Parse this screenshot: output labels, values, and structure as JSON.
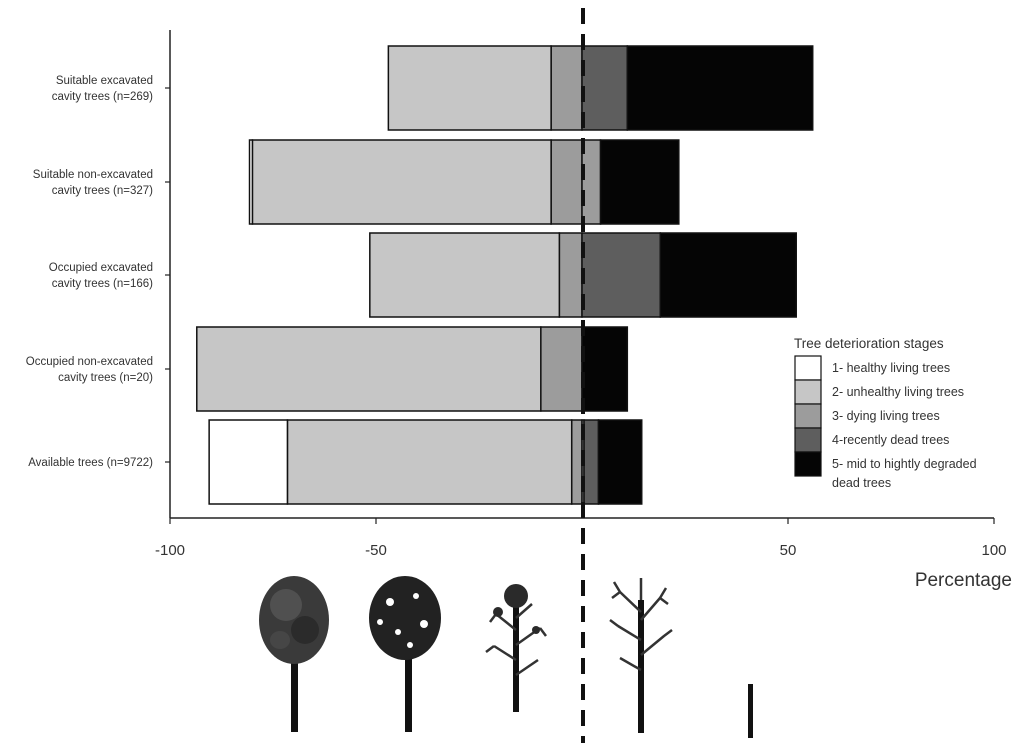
{
  "chart_data": {
    "type": "bar",
    "orientation": "horizontal",
    "stacked": "diverging",
    "xlabel": "Percentage",
    "xlim": [
      -100,
      100
    ],
    "xticks": [
      -100,
      -50,
      50,
      100
    ],
    "zero_line": "dashed",
    "categories": [
      [
        "Suitable excavated",
        "cavity trees (n=269)"
      ],
      [
        "Suitable non-excavated",
        "cavity trees (n=327)"
      ],
      [
        "Occupied excavated",
        "cavity trees (n=166)"
      ],
      [
        "Occupied non-excavated",
        "cavity trees (n=20)"
      ],
      [
        "Available trees (n=9722)"
      ]
    ],
    "series": [
      {
        "name": "1- healthy living trees",
        "side": "left",
        "color": "#ffffff",
        "values": [
          0,
          0.7,
          0,
          0,
          19
        ]
      },
      {
        "name": "2- unhealthy living trees",
        "side": "left",
        "color": "#c6c6c6",
        "values": [
          39.5,
          72.5,
          46,
          83.5,
          69
        ]
      },
      {
        "name": "3- dying living trees",
        "side": "split",
        "color": "#9c9c9c",
        "left_values": [
          7.5,
          7.5,
          5.5,
          10,
          2.5
        ],
        "right_values": [
          0,
          4.5,
          0,
          0,
          0.5
        ]
      },
      {
        "name": "4-recently dead trees",
        "side": "right",
        "color": "#5e5e5e",
        "values": [
          11,
          0,
          19,
          0,
          3.5
        ]
      },
      {
        "name": "5- mid to hightly degraded dead trees",
        "side": "right",
        "color": "#050505",
        "values": [
          45,
          19,
          33,
          11,
          10.5
        ]
      }
    ],
    "legend": {
      "title": "Tree deterioration stages",
      "position": "lower-right",
      "items": [
        {
          "lines": [
            "1- healthy living trees"
          ],
          "color": "#ffffff"
        },
        {
          "lines": [
            "2- unhealthy living trees"
          ],
          "color": "#c6c6c6"
        },
        {
          "lines": [
            "3- dying living trees"
          ],
          "color": "#9c9c9c"
        },
        {
          "lines": [
            "4-recently dead trees"
          ],
          "color": "#5e5e5e"
        },
        {
          "lines": [
            "5- mid to hightly degraded",
            "dead trees"
          ],
          "color": "#050505"
        }
      ]
    },
    "grid": false
  },
  "tree_icons": [
    "healthy-tree-icon",
    "unhealthy-tree-icon",
    "dying-tree-icon",
    "dead-tree-icon",
    "snag-icon"
  ]
}
